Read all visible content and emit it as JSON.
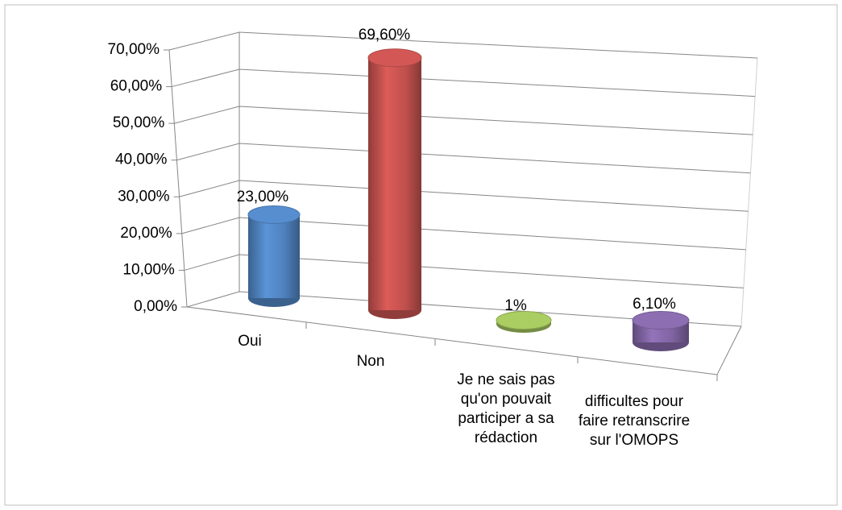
{
  "chart_data": {
    "type": "bar3d-cylinder",
    "categories": [
      "Oui",
      "Non",
      "Je ne sais pas qu'on pouvait participer a sa rédaction",
      "difficultes pour faire retranscrire sur l'OMOPS"
    ],
    "values": [
      23,
      69.6,
      1,
      6.1
    ],
    "value_labels": [
      "23,00%",
      "69,60%",
      "1%",
      "6,10%"
    ],
    "colors": [
      "#4f81bd",
      "#c0504d",
      "#9bbb59",
      "#8064a2"
    ],
    "ylim": [
      0,
      70
    ],
    "yticks": [
      {
        "value": 0,
        "label": "0,00%"
      },
      {
        "value": 10,
        "label": "10,00%"
      },
      {
        "value": 20,
        "label": "20,00%"
      },
      {
        "value": 30,
        "label": "30,00%"
      },
      {
        "value": 40,
        "label": "40,00%"
      },
      {
        "value": 50,
        "label": "50,00%"
      },
      {
        "value": 60,
        "label": "60,00%"
      },
      {
        "value": 70,
        "label": "70,00%"
      }
    ],
    "grid": true
  }
}
